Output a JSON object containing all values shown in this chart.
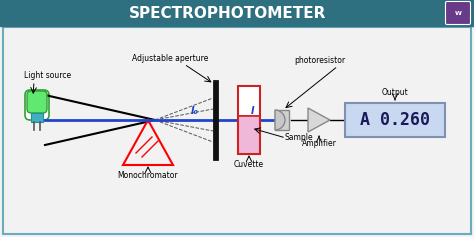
{
  "title": "SPECTROPHOTOMETER",
  "title_bg": "#2e7080",
  "title_fg": "white",
  "bg_color": "#f2f2f2",
  "border_color": "#6aacbc",
  "light_source_label": "Light source",
  "monochromator_label": "Monochromator",
  "aperture_label": "Adjustable aperture",
  "cuvette_label": "Cuvette",
  "photoresistor_label": "photoresistor",
  "sample_label": "Sample",
  "amplifier_label": "Amplifier",
  "output_label": "Output",
  "display_text": "A 0.260",
  "I0_label": "I₀",
  "I_label": "I",
  "logo_color": "#6a3a8a",
  "beam_color": "#2244cc",
  "cuvette_border": "#cc2222",
  "cuvette_fill": "#f0b8d8",
  "cuvette_top": "#ffffff",
  "triangle_color": "red",
  "bulb_color": "#60e870",
  "bulb_edge": "#30a030",
  "base_color": "#40b0c0",
  "detector_fill": "#d0d0d0",
  "amp_fill": "#d8d8d8",
  "disp_fill": "#c8d8f0",
  "disp_edge": "#8090b0"
}
